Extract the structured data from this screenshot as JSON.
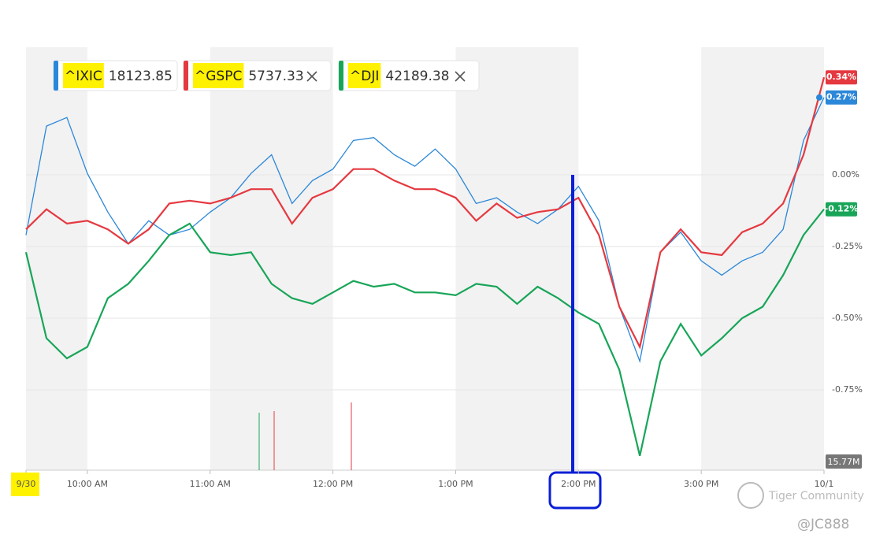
{
  "chart_data": {
    "type": "line",
    "x": [
      9.5,
      9.667,
      9.833,
      10,
      10.167,
      10.333,
      10.5,
      10.667,
      10.833,
      11,
      11.167,
      11.333,
      11.5,
      11.667,
      11.833,
      12,
      12.167,
      12.333,
      12.5,
      12.667,
      12.833,
      13,
      13.167,
      13.333,
      13.5,
      13.667,
      13.833,
      14,
      14.167,
      14.333,
      14.5,
      14.667,
      14.833,
      15,
      15.167,
      15.333,
      15.5,
      15.667,
      15.833,
      16
    ],
    "xlim": [
      9.5,
      16
    ],
    "xticks": [
      {
        "value": 9.5,
        "label": "9/30"
      },
      {
        "value": 10,
        "label": "10:00 AM"
      },
      {
        "value": 11,
        "label": "11:00 AM"
      },
      {
        "value": 12,
        "label": "12:00 PM"
      },
      {
        "value": 13,
        "label": "1:00 PM"
      },
      {
        "value": 14,
        "label": "2:00 PM"
      },
      {
        "value": 15,
        "label": "3:00 PM"
      },
      {
        "value": 16,
        "label": "10/1"
      }
    ],
    "ylim": [
      -1.03,
      0.445
    ],
    "yticks": [
      {
        "value": 0,
        "label": "0.00%"
      },
      {
        "value": -0.25,
        "label": "-0.25%"
      },
      {
        "value": -0.5,
        "label": "-0.50%"
      },
      {
        "value": -0.75,
        "label": "-0.75%"
      }
    ],
    "grid": true,
    "series": [
      {
        "name": "^IXIC",
        "quote": "18123.85",
        "color": "#2b87d8",
        "values": [
          -0.21,
          0.17,
          0.2,
          0.005,
          -0.13,
          -0.24,
          -0.16,
          -0.21,
          -0.19,
          -0.13,
          -0.08,
          0.005,
          0.07,
          -0.1,
          -0.02,
          0.02,
          0.12,
          0.13,
          0.07,
          0.03,
          0.09,
          0.02,
          -0.1,
          -0.08,
          -0.13,
          -0.17,
          -0.12,
          -0.04,
          -0.16,
          -0.46,
          -0.65,
          -0.27,
          -0.2,
          -0.3,
          -0.35,
          -0.3,
          -0.27,
          -0.19,
          0.12,
          0.27
        ],
        "value_labels": [
          null,
          null,
          null,
          null,
          null,
          null,
          null,
          null,
          null,
          null,
          null,
          null,
          null,
          null,
          null,
          null,
          null,
          null,
          null,
          null,
          null,
          null,
          null,
          null,
          null,
          null,
          null,
          null,
          null,
          null,
          null,
          null,
          null,
          null,
          null,
          null,
          null,
          null,
          null,
          "0.27%"
        ]
      },
      {
        "name": "^GSPC",
        "quote": "5737.33",
        "color": "#e53940",
        "values": [
          -0.19,
          -0.12,
          -0.17,
          -0.16,
          -0.19,
          -0.24,
          -0.19,
          -0.1,
          -0.09,
          -0.1,
          -0.08,
          -0.05,
          -0.05,
          -0.17,
          -0.08,
          -0.05,
          0.02,
          0.02,
          -0.02,
          -0.05,
          -0.05,
          -0.08,
          -0.16,
          -0.1,
          -0.15,
          -0.13,
          -0.12,
          -0.08,
          -0.21,
          -0.46,
          -0.6,
          -0.27,
          -0.19,
          -0.27,
          -0.28,
          -0.2,
          -0.17,
          -0.1,
          0.07,
          0.34
        ],
        "value_labels": [
          null,
          null,
          null,
          null,
          null,
          null,
          null,
          null,
          null,
          null,
          null,
          null,
          null,
          null,
          null,
          null,
          null,
          null,
          null,
          null,
          null,
          null,
          null,
          null,
          null,
          null,
          null,
          null,
          null,
          null,
          null,
          null,
          null,
          null,
          null,
          null,
          null,
          null,
          null,
          "0.34%"
        ]
      },
      {
        "name": "^DJI",
        "quote": "42189.38",
        "color": "#18a558",
        "values": [
          -0.27,
          -0.57,
          -0.64,
          -0.6,
          -0.43,
          -0.38,
          -0.3,
          -0.21,
          -0.17,
          -0.27,
          -0.28,
          -0.27,
          -0.38,
          -0.43,
          -0.45,
          -0.41,
          -0.37,
          -0.39,
          -0.38,
          -0.41,
          -0.41,
          -0.42,
          -0.38,
          -0.39,
          -0.45,
          -0.39,
          -0.43,
          -0.48,
          -0.52,
          -0.68,
          -0.98,
          -0.65,
          -0.52,
          -0.63,
          -0.57,
          -0.5,
          -0.46,
          -0.35,
          -0.21,
          -0.12
        ],
        "value_labels": [
          null,
          null,
          null,
          null,
          null,
          null,
          null,
          null,
          null,
          null,
          null,
          null,
          null,
          null,
          null,
          null,
          null,
          null,
          null,
          null,
          null,
          null,
          null,
          null,
          null,
          null,
          null,
          null,
          null,
          null,
          null,
          null,
          null,
          null,
          null,
          null,
          null,
          null,
          null,
          "-0.12%"
        ]
      }
    ],
    "volume_label": "15.77M",
    "watermark": "Tiger Community",
    "credit": "@JC888"
  }
}
